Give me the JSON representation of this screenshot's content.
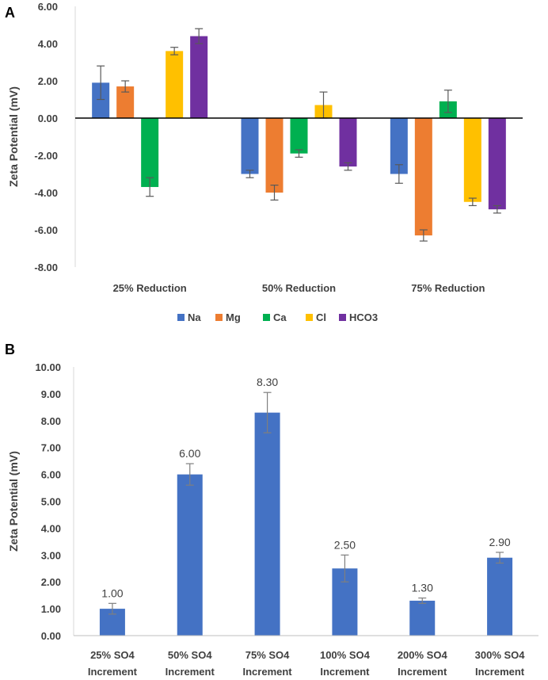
{
  "chart_data": [
    {
      "panel": "A",
      "type": "bar",
      "ylabel": "Zeta Potential (mV)",
      "ylim": [
        -8,
        6
      ],
      "yticks": [
        -8,
        -6,
        -4,
        -2,
        0,
        2,
        4,
        6
      ],
      "ytick_labels": [
        "-8.00",
        "-6.00",
        "-4.00",
        "-2.00",
        "0.00",
        "2.00",
        "4.00",
        "6.00"
      ],
      "categories": [
        "25% Reduction",
        "50% Reduction",
        "75% Reduction"
      ],
      "legend_position": "bottom",
      "series": [
        {
          "name": "Na",
          "color": "#4472C4",
          "values": [
            1.9,
            -3.0,
            -3.0
          ],
          "errors": [
            0.9,
            0.2,
            0.5
          ]
        },
        {
          "name": "Mg",
          "color": "#ED7D31",
          "values": [
            1.7,
            -4.0,
            -6.3
          ],
          "errors": [
            0.3,
            0.4,
            0.3
          ]
        },
        {
          "name": "Ca",
          "color": "#00B050",
          "values": [
            -3.7,
            -1.9,
            0.9
          ],
          "errors": [
            0.5,
            0.2,
            0.6
          ]
        },
        {
          "name": "Cl",
          "color": "#FFC000",
          "values": [
            3.6,
            0.7,
            -4.5
          ],
          "errors": [
            0.2,
            0.7,
            0.2
          ]
        },
        {
          "name": "HCO3",
          "color": "#7030A0",
          "values": [
            4.4,
            -2.6,
            -4.9
          ],
          "errors": [
            0.4,
            0.2,
            0.2
          ]
        }
      ]
    },
    {
      "panel": "B",
      "type": "bar",
      "ylabel": "Zeta Potential (mV)",
      "ylim": [
        0,
        10
      ],
      "yticks": [
        0,
        1,
        2,
        3,
        4,
        5,
        6,
        7,
        8,
        9,
        10
      ],
      "ytick_labels": [
        "0.00",
        "1.00",
        "2.00",
        "3.00",
        "4.00",
        "5.00",
        "6.00",
        "7.00",
        "8.00",
        "9.00",
        "10.00"
      ],
      "categories": [
        [
          "25% SO4",
          "Increment"
        ],
        [
          "50% SO4",
          "Increment"
        ],
        [
          "75% SO4",
          "Increment"
        ],
        [
          "100% SO4",
          "Increment"
        ],
        [
          "200% SO4",
          "Increment"
        ],
        [
          "300% SO4",
          "Increment"
        ]
      ],
      "color": "#4472C4",
      "values": [
        1.0,
        6.0,
        8.3,
        2.5,
        1.3,
        2.9
      ],
      "value_labels": [
        "1.00",
        "6.00",
        "8.30",
        "2.50",
        "1.30",
        "2.90"
      ],
      "errors": [
        0.2,
        0.4,
        0.75,
        0.5,
        0.1,
        0.2
      ]
    }
  ]
}
